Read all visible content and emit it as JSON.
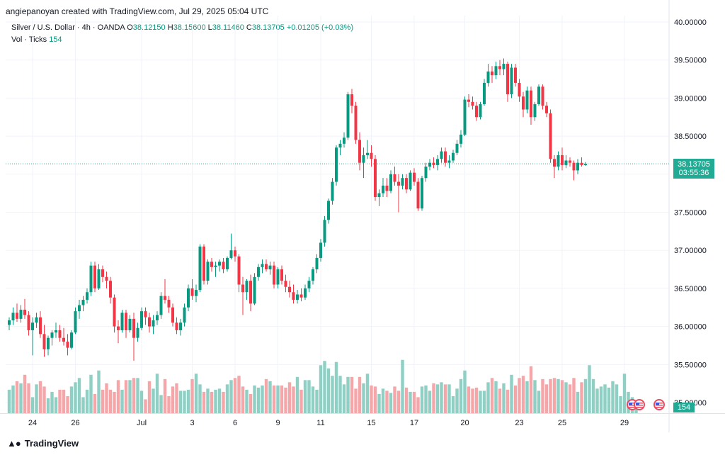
{
  "header": {
    "attribution": "angiepanoyan created with TradingView.com, Jul 29, 2025 05:04 UTC"
  },
  "legend": {
    "symbol": "Silver / U.S. Dollar · 4h · OANDA",
    "o_label": "O",
    "o_value": "38.12150",
    "h_label": "H",
    "h_value": "38.15600",
    "l_label": "L",
    "l_value": "38.11460",
    "c_label": "C",
    "c_value": "38.13705",
    "change": "+0.01205 (+0.03%)",
    "vol_label": "Vol · Ticks",
    "vol_value": "154"
  },
  "price_tag": {
    "price": "38.13705",
    "countdown": "03:55:36"
  },
  "volume_tag": "154",
  "footer": {
    "brand": "TradingView",
    "logo_icon": "tradingview-logo-icon"
  },
  "events": [
    {
      "icon": "us-flag-icon"
    },
    {
      "icon": "us-flag-icon"
    },
    {
      "icon": "us-flag-icon"
    }
  ],
  "colors": {
    "up": "#089981",
    "down": "#f23645",
    "vol_up": "#8fcfc4",
    "vol_down": "#f5a6a9",
    "grid": "#f0f3fa",
    "last_price": "#22ab94"
  },
  "chart_data": {
    "type": "candlestick",
    "interval": "4h",
    "y_axis": {
      "ticks": [
        40.0,
        39.5,
        39.0,
        38.5,
        38.0,
        37.5,
        37.0,
        36.5,
        36.0,
        35.5,
        35.0
      ],
      "tick_labels": [
        "40.00000",
        "39.50000",
        "39.00000",
        "38.50000",
        "38.00000",
        "37.50000",
        "37.00000",
        "36.50000",
        "36.00000",
        "35.50000",
        "35.00000"
      ],
      "ylim": [
        34.85,
        40.02
      ]
    },
    "x_axis": {
      "labels": [
        "24",
        "26",
        "Jul",
        "3",
        "6",
        "9",
        "11",
        "15",
        "17",
        "20",
        "23",
        "25",
        "29"
      ],
      "label_index": [
        6,
        17,
        34,
        47,
        58,
        69,
        80,
        93,
        104,
        117,
        131,
        142,
        158
      ]
    },
    "grid": true,
    "last_price": 38.13705,
    "candles": [
      [
        36.02,
        36.12,
        35.95,
        36.08
      ],
      [
        36.08,
        36.25,
        36.02,
        36.18
      ],
      [
        36.18,
        36.3,
        36.06,
        36.1
      ],
      [
        36.1,
        36.28,
        36.05,
        36.22
      ],
      [
        36.22,
        36.36,
        36.1,
        36.15
      ],
      [
        36.15,
        36.2,
        35.88,
        35.95
      ],
      [
        35.95,
        36.12,
        35.62,
        36.05
      ],
      [
        36.05,
        36.18,
        35.98,
        36.12
      ],
      [
        36.12,
        36.2,
        35.85,
        35.9
      ],
      [
        35.9,
        36.02,
        35.6,
        35.7
      ],
      [
        35.7,
        35.88,
        35.62,
        35.85
      ],
      [
        35.85,
        35.95,
        35.75,
        35.92
      ],
      [
        35.92,
        36.05,
        35.85,
        35.95
      ],
      [
        35.95,
        36.02,
        35.8,
        35.85
      ],
      [
        35.85,
        35.98,
        35.75,
        35.8
      ],
      [
        35.8,
        35.9,
        35.62,
        35.72
      ],
      [
        35.72,
        35.95,
        35.7,
        35.92
      ],
      [
        35.92,
        36.25,
        35.9,
        36.2
      ],
      [
        36.2,
        36.35,
        36.1,
        36.28
      ],
      [
        36.28,
        36.4,
        36.2,
        36.35
      ],
      [
        36.35,
        36.5,
        36.3,
        36.45
      ],
      [
        36.45,
        36.85,
        36.4,
        36.8
      ],
      [
        36.8,
        36.85,
        36.45,
        36.5
      ],
      [
        36.5,
        36.82,
        36.48,
        36.75
      ],
      [
        36.75,
        36.8,
        36.58,
        36.65
      ],
      [
        36.65,
        36.72,
        36.5,
        36.6
      ],
      [
        36.6,
        36.65,
        36.3,
        36.38
      ],
      [
        36.38,
        36.42,
        35.92,
        36.0
      ],
      [
        36.0,
        36.08,
        35.78,
        35.95
      ],
      [
        35.95,
        36.22,
        35.92,
        36.18
      ],
      [
        36.18,
        36.22,
        35.85,
        35.95
      ],
      [
        35.95,
        36.15,
        35.92,
        36.1
      ],
      [
        36.1,
        36.18,
        35.55,
        35.85
      ],
      [
        35.85,
        36.05,
        35.8,
        35.98
      ],
      [
        35.98,
        36.25,
        35.95,
        36.2
      ],
      [
        36.2,
        36.25,
        36.02,
        36.12
      ],
      [
        36.12,
        36.18,
        35.92,
        36.0
      ],
      [
        36.0,
        36.15,
        35.9,
        36.08
      ],
      [
        36.08,
        36.2,
        36.02,
        36.15
      ],
      [
        36.15,
        36.45,
        36.1,
        36.4
      ],
      [
        36.4,
        36.62,
        36.3,
        36.35
      ],
      [
        36.35,
        36.4,
        36.18,
        36.25
      ],
      [
        36.25,
        36.3,
        36.0,
        36.05
      ],
      [
        36.05,
        36.12,
        35.9,
        35.95
      ],
      [
        35.95,
        36.1,
        35.88,
        36.05
      ],
      [
        36.05,
        36.3,
        36.0,
        36.25
      ],
      [
        36.25,
        36.55,
        36.2,
        36.5
      ],
      [
        36.5,
        36.62,
        36.35,
        36.4
      ],
      [
        36.4,
        36.55,
        36.32,
        36.48
      ],
      [
        36.48,
        37.08,
        36.45,
        37.05
      ],
      [
        37.05,
        37.08,
        36.55,
        36.6
      ],
      [
        36.6,
        36.88,
        36.55,
        36.85
      ],
      [
        36.85,
        36.9,
        36.72,
        36.78
      ],
      [
        36.78,
        36.85,
        36.65,
        36.8
      ],
      [
        36.8,
        36.88,
        36.72,
        36.85
      ],
      [
        36.85,
        36.9,
        36.7,
        36.75
      ],
      [
        36.75,
        36.92,
        36.72,
        36.9
      ],
      [
        36.9,
        37.22,
        36.88,
        37.0
      ],
      [
        37.0,
        37.05,
        36.85,
        36.92
      ],
      [
        36.92,
        36.95,
        36.45,
        36.55
      ],
      [
        36.55,
        36.65,
        36.15,
        36.45
      ],
      [
        36.45,
        36.62,
        36.35,
        36.6
      ],
      [
        36.6,
        36.68,
        36.2,
        36.3
      ],
      [
        36.3,
        36.7,
        36.28,
        36.65
      ],
      [
        36.65,
        36.82,
        36.6,
        36.78
      ],
      [
        36.78,
        36.88,
        36.7,
        36.82
      ],
      [
        36.82,
        36.88,
        36.72,
        36.75
      ],
      [
        36.75,
        36.85,
        36.68,
        36.8
      ],
      [
        36.8,
        36.85,
        36.5,
        36.55
      ],
      [
        36.55,
        36.78,
        36.5,
        36.75
      ],
      [
        36.75,
        36.8,
        36.55,
        36.6
      ],
      [
        36.6,
        36.68,
        36.45,
        36.52
      ],
      [
        36.52,
        36.6,
        36.38,
        36.45
      ],
      [
        36.45,
        36.55,
        36.3,
        36.35
      ],
      [
        36.35,
        36.48,
        36.3,
        36.42
      ],
      [
        36.42,
        36.5,
        36.33,
        36.38
      ],
      [
        36.38,
        36.55,
        36.35,
        36.5
      ],
      [
        36.5,
        36.65,
        36.45,
        36.6
      ],
      [
        36.6,
        36.78,
        36.55,
        36.75
      ],
      [
        36.75,
        36.95,
        36.7,
        36.9
      ],
      [
        36.9,
        37.15,
        36.85,
        37.1
      ],
      [
        37.1,
        37.45,
        37.05,
        37.4
      ],
      [
        37.4,
        37.68,
        37.35,
        37.65
      ],
      [
        37.65,
        37.95,
        37.6,
        37.9
      ],
      [
        37.9,
        38.38,
        37.85,
        38.35
      ],
      [
        38.35,
        38.45,
        38.25,
        38.4
      ],
      [
        38.4,
        38.55,
        38.35,
        38.48
      ],
      [
        38.48,
        39.08,
        38.45,
        39.05
      ],
      [
        39.05,
        39.12,
        38.8,
        38.9
      ],
      [
        38.9,
        38.95,
        38.4,
        38.45
      ],
      [
        38.45,
        38.55,
        38.05,
        38.15
      ],
      [
        38.15,
        38.35,
        37.95,
        38.25
      ],
      [
        38.25,
        38.45,
        38.2,
        38.28
      ],
      [
        38.28,
        38.38,
        38.1,
        38.2
      ],
      [
        38.2,
        38.25,
        37.65,
        37.7
      ],
      [
        37.7,
        37.8,
        37.58,
        37.75
      ],
      [
        37.75,
        37.95,
        37.7,
        37.85
      ],
      [
        37.85,
        37.95,
        37.7,
        37.78
      ],
      [
        37.78,
        38.05,
        37.75,
        38.0
      ],
      [
        38.0,
        38.1,
        37.85,
        37.9
      ],
      [
        37.9,
        38.0,
        37.5,
        37.85
      ],
      [
        37.85,
        38.0,
        37.8,
        37.95
      ],
      [
        37.95,
        38.0,
        37.75,
        37.8
      ],
      [
        37.8,
        38.05,
        37.78,
        38.02
      ],
      [
        38.02,
        38.08,
        37.85,
        37.9
      ],
      [
        37.9,
        37.95,
        37.52,
        37.55
      ],
      [
        37.55,
        37.98,
        37.52,
        37.95
      ],
      [
        37.95,
        38.15,
        37.9,
        38.1
      ],
      [
        38.1,
        38.2,
        38.05,
        38.15
      ],
      [
        38.15,
        38.22,
        38.08,
        38.12
      ],
      [
        38.12,
        38.25,
        38.05,
        38.2
      ],
      [
        38.2,
        38.35,
        38.15,
        38.3
      ],
      [
        38.3,
        38.35,
        38.1,
        38.15
      ],
      [
        38.15,
        38.25,
        38.08,
        38.18
      ],
      [
        38.18,
        38.32,
        38.15,
        38.28
      ],
      [
        38.28,
        38.45,
        38.25,
        38.4
      ],
      [
        38.4,
        38.58,
        38.35,
        38.52
      ],
      [
        38.52,
        39.02,
        38.5,
        38.98
      ],
      [
        38.98,
        39.05,
        38.88,
        38.95
      ],
      [
        38.95,
        39.02,
        38.85,
        38.9
      ],
      [
        38.9,
        38.95,
        38.7,
        38.75
      ],
      [
        38.75,
        38.95,
        38.72,
        38.92
      ],
      [
        38.92,
        39.25,
        38.9,
        39.2
      ],
      [
        39.2,
        39.45,
        39.15,
        39.35
      ],
      [
        39.35,
        39.42,
        39.2,
        39.3
      ],
      [
        39.3,
        39.48,
        39.25,
        39.42
      ],
      [
        39.42,
        39.5,
        39.3,
        39.38
      ],
      [
        39.38,
        39.52,
        39.3,
        39.45
      ],
      [
        39.45,
        39.48,
        38.95,
        39.05
      ],
      [
        39.05,
        39.45,
        39.0,
        39.4
      ],
      [
        39.4,
        39.45,
        39.15,
        39.2
      ],
      [
        39.2,
        39.25,
        38.95,
        39.02
      ],
      [
        39.02,
        39.08,
        38.75,
        38.85
      ],
      [
        38.85,
        39.15,
        38.8,
        39.1
      ],
      [
        39.1,
        39.15,
        38.65,
        38.75
      ],
      [
        38.75,
        38.95,
        38.7,
        38.92
      ],
      [
        38.92,
        39.18,
        38.9,
        39.15
      ],
      [
        39.15,
        39.18,
        38.85,
        38.9
      ],
      [
        38.9,
        38.95,
        38.75,
        38.8
      ],
      [
        38.8,
        38.85,
        38.15,
        38.2
      ],
      [
        38.2,
        38.25,
        37.95,
        38.1
      ],
      [
        38.1,
        38.3,
        38.05,
        38.25
      ],
      [
        38.25,
        38.35,
        38.05,
        38.12
      ],
      [
        38.12,
        38.25,
        38.08,
        38.18
      ],
      [
        38.18,
        38.22,
        38.1,
        38.15
      ],
      [
        38.15,
        38.18,
        37.92,
        38.05
      ],
      [
        38.05,
        38.2,
        38.0,
        38.15
      ],
      [
        38.15,
        38.22,
        38.1,
        38.12
      ],
      [
        38.12,
        38.16,
        38.11,
        38.137
      ]
    ],
    "volume": {
      "ylim": [
        0,
        9.5
      ],
      "values": [
        2.2,
        2.6,
        3.0,
        2.8,
        3.6,
        2.8,
        1.5,
        2.7,
        3.0,
        2.5,
        1.4,
        2.0,
        1.5,
        2.2,
        2.2,
        1.6,
        2.5,
        2.9,
        3.3,
        1.5,
        2.2,
        3.6,
        1.8,
        4.0,
        2.2,
        2.8,
        2.2,
        2.0,
        3.1,
        2.2,
        3.1,
        3.1,
        3.3,
        3.3,
        2.1,
        1.3,
        3.0,
        2.3,
        3.7,
        1.7,
        3.2,
        1.6,
        2.5,
        2.8,
        2.1,
        2.1,
        2.2,
        3.2,
        3.7,
        2.7,
        2.0,
        2.3,
        2.0,
        2.2,
        2.3,
        2.0,
        2.7,
        3.1,
        3.3,
        3.5,
        2.5,
        2.2,
        1.8,
        2.6,
        2.4,
        2.6,
        3.2,
        3.0,
        2.6,
        2.6,
        2.6,
        2.4,
        2.9,
        2.5,
        3.4,
        2.2,
        3.1,
        3.1,
        2.5,
        2.2,
        4.5,
        4.9,
        4.2,
        3.5,
        4.8,
        3.5,
        2.7,
        3.4,
        3.4,
        2.3,
        3.4,
        2.8,
        3.7,
        2.6,
        2.5,
        1.8,
        2.3,
        2.1,
        1.9,
        2.5,
        2.1,
        5.0,
        2.4,
        2.0,
        2.0,
        1.5,
        2.5,
        2.6,
        2.1,
        2.8,
        2.7,
        2.9,
        2.7,
        2.7,
        1.6,
        2.3,
        3.2,
        4.0,
        2.5,
        2.3,
        2.4,
        2.1,
        2.1,
        2.9,
        3.3,
        3.0,
        2.3,
        2.8,
        2.2,
        3.6,
        2.6,
        3.3,
        3.5,
        3.0,
        4.4,
        3.1,
        2.1,
        3.2,
        2.7,
        3.2,
        3.3,
        3.2,
        3.1,
        2.9,
        2.7,
        3.3,
        2.0,
        2.9,
        3.2,
        4.5,
        3.2,
        2.3,
        2.5,
        2.7,
        2.4,
        3.0,
        2.7,
        1.6,
        3.7,
        2.0,
        1.5,
        0.4
      ],
      "last_value": 154
    }
  }
}
